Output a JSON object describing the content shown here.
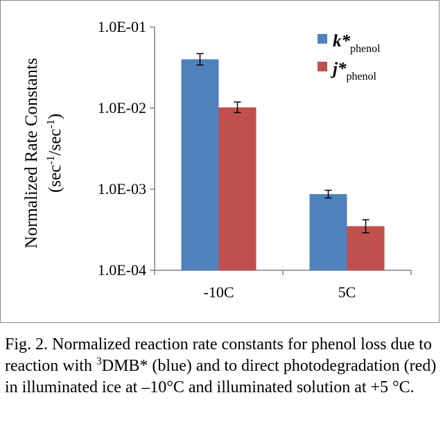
{
  "chart_data": {
    "type": "bar",
    "yscale": "log",
    "ylim": [
      0.0001,
      0.1
    ],
    "y_ticks": [
      "1.0E-04",
      "1.0E-03",
      "1.0E-02",
      "1.0E-01"
    ],
    "categories": [
      "-10C",
      "5C"
    ],
    "ylabel_line1": "Normalized Rate Constants",
    "ylabel_line2": {
      "a": "(sec",
      "b": "-1",
      "c": "/sec",
      "d": "-1",
      "e": ")"
    },
    "series": [
      {
        "name": {
          "main": "k*",
          "sub": "phenol"
        },
        "color": "#4f81bd",
        "values": [
          0.04,
          0.00087
        ],
        "err_low": [
          0.034,
          0.00078
        ],
        "err_high": [
          0.047,
          0.00097
        ]
      },
      {
        "name": {
          "main": "j*",
          "sub": "phenol"
        },
        "color": "#c0504d",
        "values": [
          0.0102,
          0.00035
        ],
        "err_low": [
          0.0088,
          0.00029
        ],
        "err_high": [
          0.0119,
          0.00042
        ]
      }
    ],
    "legend": "top-right",
    "grid": false
  },
  "caption": {
    "p1": "Fig. 2. Normalized reaction rate constants for phenol loss due to reaction with ",
    "sup": "3",
    "p2": "DMB* (blue) and to direct photodegradation (red) in illuminated ice at –10°C and illuminated solution at +5 °C."
  }
}
